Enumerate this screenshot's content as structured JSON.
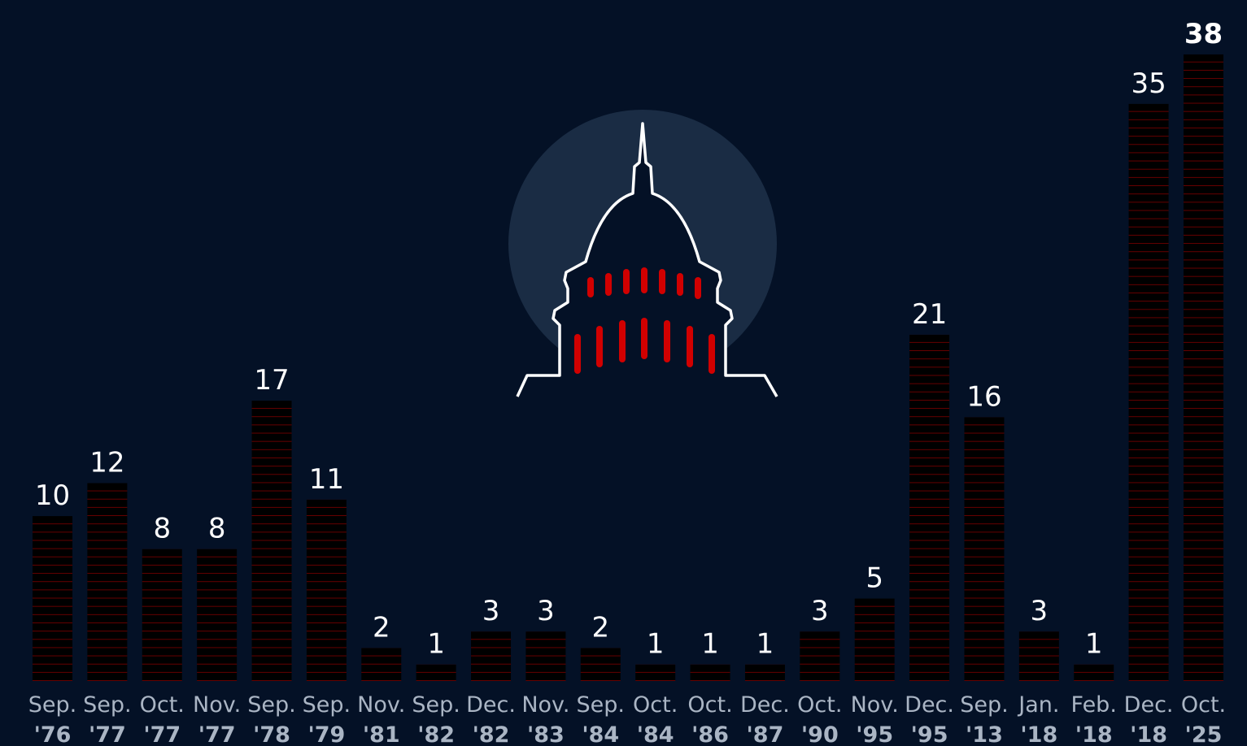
{
  "chart_data": {
    "type": "bar",
    "categories": [
      [
        "Sep.",
        "'76"
      ],
      [
        "Sep.",
        "'77"
      ],
      [
        "Oct.",
        "'77"
      ],
      [
        "Nov.",
        "'77"
      ],
      [
        "Sep.",
        "'78"
      ],
      [
        "Sep.",
        "'79"
      ],
      [
        "Nov.",
        "'81"
      ],
      [
        "Sep.",
        "'82"
      ],
      [
        "Dec.",
        "'82"
      ],
      [
        "Nov.",
        "'83"
      ],
      [
        "Sep.",
        "'84"
      ],
      [
        "Oct.",
        "'84"
      ],
      [
        "Oct.",
        "'86"
      ],
      [
        "Dec.",
        "'87"
      ],
      [
        "Oct.",
        "'90"
      ],
      [
        "Nov.",
        "'95"
      ],
      [
        "Dec.",
        "'95"
      ],
      [
        "Sep.",
        "'13"
      ],
      [
        "Jan.",
        "'18"
      ],
      [
        "Feb.",
        "'18"
      ],
      [
        "Dec.",
        "'18"
      ],
      [
        "Oct.",
        "'25"
      ]
    ],
    "values": [
      10,
      12,
      8,
      8,
      17,
      11,
      2,
      1,
      3,
      3,
      2,
      1,
      1,
      1,
      3,
      5,
      21,
      16,
      3,
      1,
      35,
      38
    ],
    "color": "#d10000",
    "ylim": [
      0,
      38
    ]
  }
}
